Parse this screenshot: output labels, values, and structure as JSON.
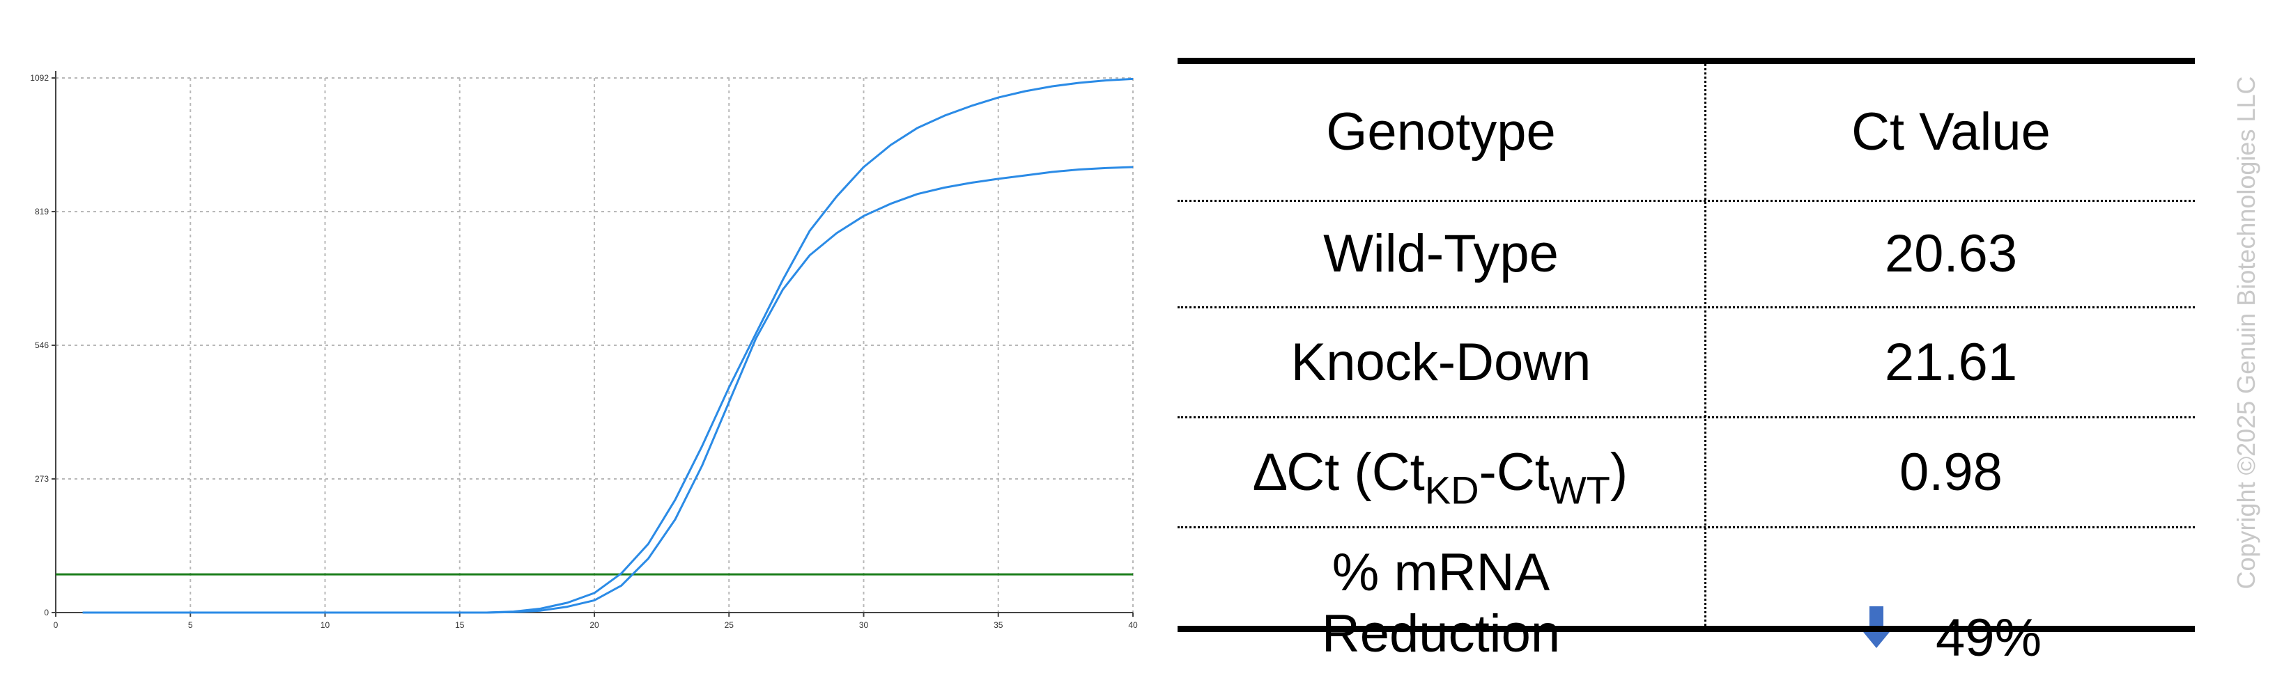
{
  "chart_data": {
    "type": "line",
    "title": "",
    "xlabel": "",
    "ylabel": "",
    "xlim": [
      0,
      40
    ],
    "ylim": [
      0,
      1092
    ],
    "xticks": [
      0,
      5,
      10,
      15,
      20,
      25,
      30,
      35,
      40
    ],
    "yticks": [
      0,
      273,
      546,
      819,
      1092
    ],
    "grid": true,
    "threshold": {
      "y": 78,
      "color": "#1a7d1a"
    },
    "series_color": "#2b8be6",
    "series": [
      {
        "x": [
          1,
          5,
          10,
          15,
          16,
          17,
          18,
          19,
          20,
          21,
          22,
          23,
          24,
          25,
          26,
          27,
          28,
          29,
          30,
          31,
          32,
          33,
          34,
          35,
          36,
          37,
          38,
          39,
          40
        ],
        "y": [
          0,
          0,
          0,
          0,
          0,
          2,
          8,
          20,
          40,
          80,
          140,
          230,
          340,
          460,
          570,
          680,
          780,
          850,
          910,
          955,
          990,
          1015,
          1035,
          1052,
          1065,
          1075,
          1082,
          1087,
          1090
        ]
      },
      {
        "x": [
          1,
          5,
          10,
          15,
          16,
          17,
          18,
          19,
          20,
          21,
          22,
          23,
          24,
          25,
          26,
          27,
          28,
          29,
          30,
          31,
          32,
          33,
          34,
          35,
          36,
          37,
          38,
          39,
          40
        ],
        "y": [
          0,
          0,
          0,
          0,
          0,
          1,
          4,
          12,
          25,
          55,
          110,
          190,
          300,
          430,
          560,
          660,
          730,
          775,
          810,
          835,
          855,
          868,
          878,
          886,
          893,
          900,
          905,
          908,
          910
        ]
      }
    ]
  },
  "table": {
    "headers": [
      "Genotype",
      "Ct Value"
    ],
    "rows": [
      {
        "label": "Wild-Type",
        "value": "20.63"
      },
      {
        "label": "Knock-Down",
        "value": "21.61"
      },
      {
        "label_main": "∆Ct (Ct",
        "label_sub1": "KD",
        "label_mid": "-Ct",
        "label_sub2": "WT",
        "label_end": ")",
        "value": "0.98"
      },
      {
        "label_line1": "% mRNA",
        "label_line2": "Reduction",
        "value": "49%",
        "arrow_color": "#3f6fc4"
      }
    ]
  },
  "copyright": "Copyright ©2025 Genuin Biotechnologies LLC"
}
